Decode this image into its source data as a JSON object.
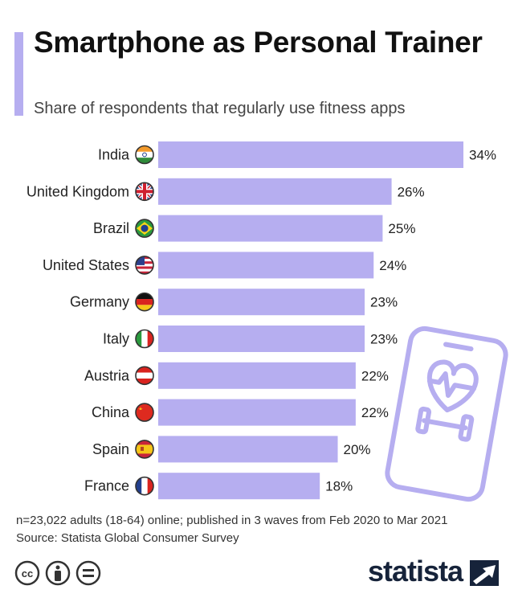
{
  "header": {
    "title": "Smartphone as Personal Trainer",
    "subtitle": "Share of respondents that regularly use fitness apps"
  },
  "chart_data": {
    "type": "bar",
    "orientation": "horizontal",
    "title": "Smartphone as Personal Trainer",
    "subtitle": "Share of respondents that regularly use fitness apps",
    "categories": [
      "India",
      "United Kingdom",
      "Brazil",
      "United States",
      "Germany",
      "Italy",
      "Austria",
      "China",
      "Spain",
      "France"
    ],
    "values": [
      34,
      26,
      25,
      24,
      23,
      23,
      22,
      22,
      20,
      18
    ],
    "value_labels": [
      "34%",
      "26%",
      "25%",
      "24%",
      "23%",
      "23%",
      "22%",
      "22%",
      "20%",
      "18%"
    ],
    "unit": "%",
    "xlim": [
      0,
      34
    ],
    "grid": false,
    "bar_color": "#b6aef0"
  },
  "footer": {
    "note": "n=23,022 adults (18-64) online; published in 3 waves from Feb 2020 to Mar 2021",
    "source": "Source: Statista Global Consumer Survey",
    "brand": "statista"
  },
  "colors": {
    "accent": "#b6aef0",
    "text": "#222222",
    "brand": "#16233a"
  },
  "icons": [
    "flag-india-icon",
    "flag-uk-icon",
    "flag-brazil-icon",
    "flag-usa-icon",
    "flag-germany-icon",
    "flag-italy-icon",
    "flag-austria-icon",
    "flag-china-icon",
    "flag-spain-icon",
    "flag-france-icon",
    "phone-fitness-icon",
    "cc-icon",
    "by-icon",
    "nd-icon",
    "statista-logo-icon"
  ]
}
